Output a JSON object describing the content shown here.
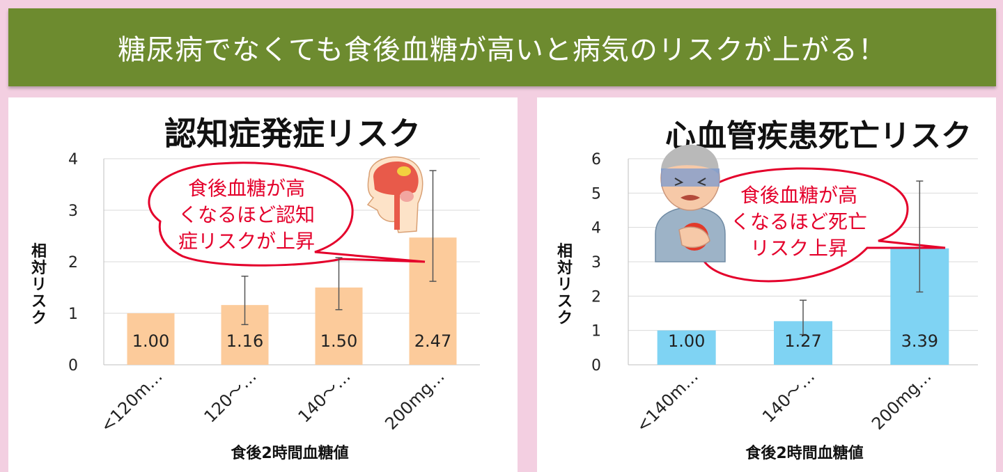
{
  "banner": {
    "text": "糖尿病でなくても食後血糖が高いと病気のリスクが上がる！"
  },
  "colors": {
    "background": "#f3cfe1",
    "banner": "#6d8b2f",
    "bar_left": "#fccb9b",
    "bar_right": "#7fd3f3",
    "bubble_outline": "#e4002b"
  },
  "chart_data": [
    {
      "type": "bar",
      "title": "認知症発症リスク",
      "categories": [
        "<120m…",
        "120～…",
        "140～…",
        "200mg…"
      ],
      "values": [
        1.0,
        1.16,
        1.5,
        2.47
      ],
      "data_labels": [
        "1.00",
        "1.16",
        "1.50",
        "2.47"
      ],
      "error_low": [
        null,
        0.78,
        1.07,
        1.62
      ],
      "error_high": [
        null,
        1.72,
        2.08,
        3.77
      ],
      "ylim": [
        0,
        4
      ],
      "yticks": [
        "0",
        "1",
        "2",
        "3",
        "4"
      ],
      "ylabel": "相対リスク",
      "xlabel": "食後2時間血糖値",
      "grid": true,
      "callout": [
        "食後血糖が高",
        "くなるほど認知",
        "症リスクが上昇"
      ],
      "icon": "brain-illustration-icon"
    },
    {
      "type": "bar",
      "title": "心血管疾患死亡リスク",
      "categories": [
        "<140m…",
        "140～…",
        "200mg…"
      ],
      "values": [
        1.0,
        1.27,
        3.39
      ],
      "data_labels": [
        "1.00",
        "1.27",
        "3.39"
      ],
      "error_low": [
        null,
        0.88,
        2.12
      ],
      "error_high": [
        null,
        1.88,
        5.35
      ],
      "ylim": [
        0,
        6
      ],
      "yticks": [
        "0",
        "1",
        "2",
        "3",
        "4",
        "5",
        "6"
      ],
      "ylabel": "相対リスク",
      "xlabel": "食後2時間血糖値",
      "grid": true,
      "callout": [
        "食後血糖が高",
        "くなるほど死亡",
        "リスク上昇"
      ],
      "icon": "chest-pain-elderly-man-icon"
    }
  ]
}
